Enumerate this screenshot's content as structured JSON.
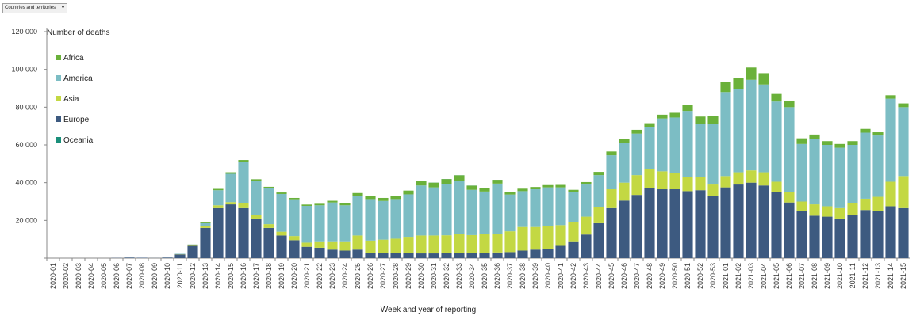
{
  "filter": {
    "label": "Countries and territories",
    "arrow": "▾"
  },
  "colors": {
    "Europe": "#3d5a80",
    "Asia": "#c3d843",
    "America": "#7cbdc4",
    "Africa": "#6ab13a",
    "Oceania": "#1a8f7a",
    "axis": "#888888"
  },
  "chart_data": {
    "type": "bar",
    "stacked": true,
    "title": "",
    "ylabel": "Number of deaths",
    "xlabel": "Week and year of reporting",
    "ylim": [
      0,
      120000
    ],
    "yticks": [
      0,
      20000,
      40000,
      60000,
      80000,
      100000,
      120000
    ],
    "ytick_labels": [
      "",
      "20 000",
      "40 000",
      "60 000",
      "80 000",
      "100 000",
      "120 000"
    ],
    "legend_order": [
      "Africa",
      "America",
      "Asia",
      "Europe",
      "Oceania"
    ],
    "legend_position": "top-left",
    "categories": [
      "2020-01",
      "2020-02",
      "2020-03",
      "2020-04",
      "2020-05",
      "2020-06",
      "2020-07",
      "2020-08",
      "2020-09",
      "2020-10",
      "2020-11",
      "2020-12",
      "2020-13",
      "2020-14",
      "2020-15",
      "2020-16",
      "2020-17",
      "2020-18",
      "2020-19",
      "2020-20",
      "2020-21",
      "2020-22",
      "2020-23",
      "2020-24",
      "2020-25",
      "2020-26",
      "2020-27",
      "2020-28",
      "2020-29",
      "2020-30",
      "2020-31",
      "2020-32",
      "2020-33",
      "2020-34",
      "2020-35",
      "2020-36",
      "2020-37",
      "2020-38",
      "2020-39",
      "2020-40",
      "2020-41",
      "2020-42",
      "2020-43",
      "2020-44",
      "2020-45",
      "2020-46",
      "2020-47",
      "2020-48",
      "2020-49",
      "2020-50",
      "2020-51",
      "2020-52",
      "2020-53",
      "2021-01",
      "2021-02",
      "2021-03",
      "2021-04",
      "2021-05",
      "2021-06",
      "2021-07",
      "2021-08",
      "2021-09",
      "2021-10",
      "2021-11",
      "2021-12",
      "2021-13",
      "2021-14",
      "2021-15"
    ],
    "series": [
      {
        "name": "Europe",
        "values": [
          0,
          0,
          0,
          0,
          0,
          100,
          300,
          200,
          50,
          300,
          2000,
          6500,
          16000,
          26500,
          28500,
          26500,
          21000,
          16000,
          12000,
          9500,
          6000,
          5500,
          4500,
          4000,
          4500,
          2800,
          2800,
          2800,
          2800,
          2500,
          2500,
          2600,
          2600,
          2700,
          2800,
          3000,
          3200,
          4000,
          4500,
          5000,
          6500,
          8500,
          12500,
          18500,
          26500,
          30500,
          33500,
          37000,
          36500,
          36500,
          35500,
          36000,
          33000,
          37500,
          39000,
          40000,
          38500,
          35000,
          29500,
          25000,
          22500,
          22000,
          21000,
          23000,
          25500,
          25000,
          27500,
          26500
        ]
      },
      {
        "name": "Asia",
        "values": [
          0,
          0,
          0,
          0,
          0,
          0,
          0,
          0,
          0,
          0,
          100,
          400,
          1000,
          1500,
          1200,
          2500,
          2000,
          2000,
          2000,
          2200,
          2200,
          3000,
          4000,
          4500,
          7500,
          6500,
          7000,
          7500,
          8500,
          9500,
          9500,
          9500,
          10000,
          9500,
          10000,
          10000,
          11000,
          12500,
          12000,
          12000,
          11000,
          10500,
          9500,
          8500,
          10000,
          9500,
          10500,
          10000,
          9500,
          8500,
          7500,
          7000,
          6000,
          6000,
          6500,
          6500,
          7000,
          5500,
          5500,
          5000,
          6000,
          5500,
          5500,
          6000,
          6000,
          7500,
          13000,
          17000
        ]
      },
      {
        "name": "America",
        "values": [
          0,
          0,
          0,
          0,
          0,
          0,
          0,
          0,
          0,
          0,
          200,
          300,
          1500,
          8000,
          15000,
          22000,
          18000,
          19000,
          20000,
          19500,
          19500,
          19500,
          21000,
          19500,
          21000,
          22000,
          20500,
          21000,
          22500,
          26500,
          25500,
          27000,
          28500,
          24000,
          22500,
          26500,
          19500,
          19000,
          20000,
          20500,
          20000,
          16000,
          17000,
          17000,
          18000,
          21000,
          22000,
          22500,
          28000,
          29500,
          35000,
          28000,
          32000,
          44500,
          44000,
          48000,
          46500,
          42500,
          45000,
          30500,
          34500,
          32500,
          32000,
          31000,
          35000,
          32500,
          44000,
          36500
        ]
      },
      {
        "name": "Africa",
        "values": [
          0,
          0,
          0,
          0,
          0,
          0,
          0,
          0,
          0,
          0,
          0,
          50,
          500,
          700,
          800,
          1000,
          800,
          800,
          800,
          700,
          700,
          800,
          900,
          1200,
          1500,
          1500,
          1600,
          1800,
          2000,
          2500,
          2500,
          2800,
          2800,
          2200,
          2000,
          2000,
          1500,
          1300,
          1200,
          1200,
          1300,
          1200,
          1300,
          1700,
          2000,
          2000,
          2000,
          2000,
          2000,
          2500,
          3000,
          4000,
          4500,
          5500,
          6000,
          6500,
          6000,
          4000,
          3500,
          3000,
          2500,
          2000,
          2000,
          2000,
          2000,
          1700,
          1800,
          2000
        ]
      },
      {
        "name": "Oceania",
        "values": [
          0,
          0,
          0,
          0,
          0,
          0,
          0,
          0,
          0,
          0,
          0,
          0,
          0,
          10,
          10,
          10,
          10,
          0,
          0,
          0,
          0,
          0,
          0,
          0,
          0,
          0,
          0,
          0,
          0,
          100,
          50,
          50,
          50,
          50,
          30,
          20,
          0,
          0,
          0,
          0,
          0,
          0,
          0,
          0,
          0,
          0,
          0,
          0,
          0,
          0,
          0,
          0,
          0,
          0,
          0,
          0,
          0,
          0,
          0,
          0,
          0,
          0,
          0,
          0,
          0,
          0,
          0,
          0
        ]
      }
    ]
  }
}
